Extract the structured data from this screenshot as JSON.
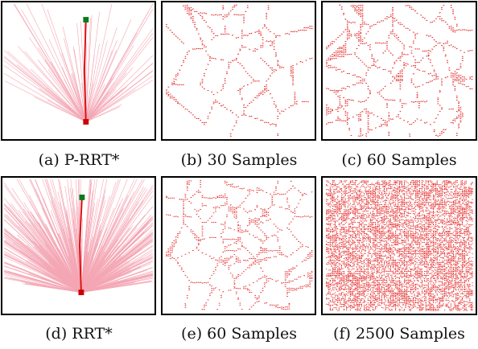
{
  "figure": {
    "panels": [
      {
        "id": "a",
        "caption": "(a) P-RRT*"
      },
      {
        "id": "b",
        "caption": "(b) 30 Samples"
      },
      {
        "id": "c",
        "caption": "(c) 60 Samples"
      },
      {
        "id": "d",
        "caption": "(d) RRT*"
      },
      {
        "id": "e",
        "caption": "(e) 60 Samples"
      },
      {
        "id": "f",
        "caption": "(f) 2500 Samples"
      }
    ],
    "colors": {
      "tree_edges": "#f4a6b4",
      "path": "#dd1111",
      "cells": "#e01010",
      "start_marker": "#cc0000",
      "goal_marker": "#0a7a1a",
      "frame": "#000000"
    },
    "markers": {
      "start": "start (red square)",
      "goal": "goal (green square)"
    }
  }
}
